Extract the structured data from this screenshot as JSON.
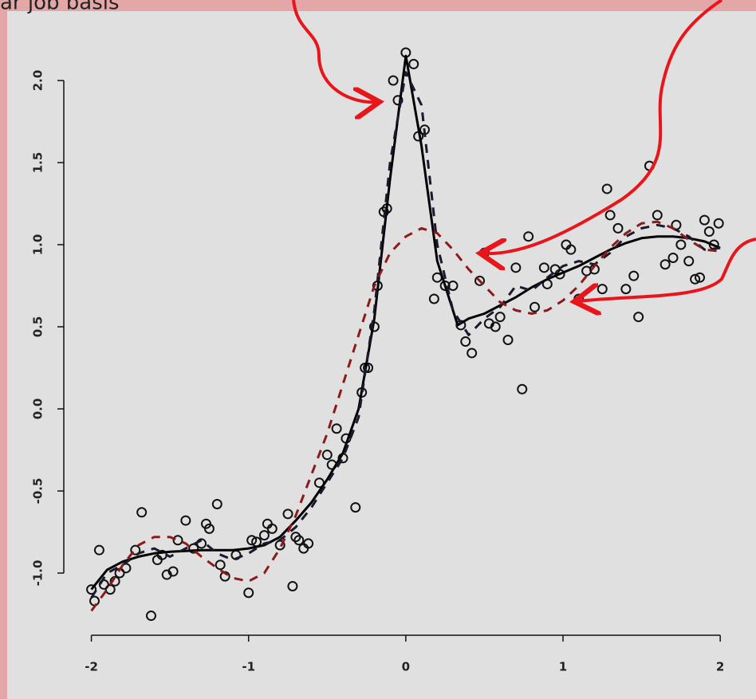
{
  "chart_data": {
    "type": "scatter",
    "caption": "ar job basis",
    "xlim": [
      -2.15,
      2.05
    ],
    "ylim": [
      -1.25,
      2.25
    ],
    "xticks": [
      -2,
      -1,
      0,
      1,
      2
    ],
    "yticks": [
      {
        "value": -1,
        "label": "-1.0"
      },
      -0.5,
      {
        "value": 0,
        "label": "0.0"
      },
      0.5,
      {
        "value": 1,
        "label": "1.0"
      },
      1.5,
      {
        "value": 2,
        "label": "2.0"
      }
    ],
    "series": [
      {
        "kind": "points",
        "color": "#111111",
        "x": [
          -2.0,
          -1.98,
          -1.95,
          -1.92,
          -1.88,
          -1.85,
          -1.82,
          -1.78,
          -1.72,
          -1.68,
          -1.62,
          -1.58,
          -1.55,
          -1.52,
          -1.48,
          -1.45,
          -1.4,
          -1.35,
          -1.3,
          -1.27,
          -1.25,
          -1.2,
          -1.18,
          -1.15,
          -1.08,
          -1.0,
          -0.98,
          -0.95,
          -0.9,
          -0.88,
          -0.85,
          -0.8,
          -0.75,
          -0.72,
          -0.7,
          -0.68,
          -0.65,
          -0.62,
          -0.55,
          -0.5,
          -0.47,
          -0.44,
          -0.4,
          -0.38,
          -0.32,
          -0.28,
          -0.26,
          -0.24,
          -0.2,
          -0.18,
          -0.14,
          -0.12,
          -0.08,
          -0.05,
          0.0,
          0.05,
          0.08,
          0.12,
          0.18,
          0.2,
          0.25,
          0.3,
          0.35,
          0.38,
          0.42,
          0.47,
          0.5,
          0.53,
          0.57,
          0.6,
          0.65,
          0.7,
          0.74,
          0.78,
          0.82,
          0.88,
          0.9,
          0.95,
          0.98,
          1.02,
          1.05,
          1.1,
          1.15,
          1.2,
          1.25,
          1.28,
          1.3,
          1.35,
          1.4,
          1.45,
          1.48,
          1.55,
          1.6,
          1.65,
          1.7,
          1.72,
          1.75,
          1.8,
          1.84,
          1.87,
          1.9,
          1.93,
          1.96,
          1.99
        ],
        "values": [
          -1.1,
          -1.17,
          -0.86,
          -1.07,
          -1.1,
          -1.05,
          -1.0,
          -0.97,
          -0.86,
          -0.63,
          -1.26,
          -0.92,
          -0.89,
          -1.01,
          -0.99,
          -0.8,
          -0.68,
          -0.85,
          -0.82,
          -0.7,
          -0.73,
          -0.58,
          -0.95,
          -1.02,
          -0.89,
          -1.12,
          -0.8,
          -0.81,
          -0.77,
          -0.7,
          -0.73,
          -0.83,
          -0.64,
          -1.08,
          -0.78,
          -0.8,
          -0.85,
          -0.82,
          -0.45,
          -0.28,
          -0.34,
          -0.12,
          -0.3,
          -0.18,
          -0.6,
          0.1,
          0.25,
          0.25,
          0.5,
          0.75,
          1.2,
          1.22,
          2.0,
          1.88,
          2.17,
          2.1,
          1.66,
          1.7,
          0.67,
          0.8,
          0.75,
          0.75,
          0.51,
          0.41,
          0.34,
          0.78,
          0.95,
          0.52,
          0.5,
          0.56,
          0.42,
          0.86,
          0.12,
          1.05,
          0.62,
          0.86,
          0.76,
          0.85,
          0.82,
          1.0,
          0.97,
          0.67,
          0.84,
          0.85,
          0.73,
          1.34,
          1.18,
          1.1,
          0.73,
          0.81,
          0.56,
          1.48,
          1.18,
          0.88,
          0.92,
          1.12,
          1.0,
          0.9,
          0.79,
          0.8,
          1.15,
          1.08,
          1.0,
          1.13
        ]
      },
      {
        "kind": "solid",
        "color": "#000000",
        "x": [
          -2,
          -1.9,
          -1.8,
          -1.7,
          -1.6,
          -1.5,
          -1.4,
          -1.3,
          -1.2,
          -1.1,
          -1.0,
          -0.9,
          -0.8,
          -0.7,
          -0.6,
          -0.5,
          -0.4,
          -0.3,
          -0.2,
          -0.1,
          0,
          0.1,
          0.2,
          0.33,
          0.4,
          0.5,
          0.6,
          0.7,
          0.8,
          0.9,
          1.0,
          1.1,
          1.2,
          1.3,
          1.4,
          1.5,
          1.6,
          1.7,
          1.8,
          1.9,
          2.0
        ],
        "values": [
          -1.1,
          -0.98,
          -0.93,
          -0.9,
          -0.88,
          -0.87,
          -0.865,
          -0.86,
          -0.86,
          -0.86,
          -0.85,
          -0.83,
          -0.78,
          -0.68,
          -0.57,
          -0.43,
          -0.27,
          0.0,
          0.55,
          1.4,
          2.15,
          1.6,
          0.9,
          0.51,
          0.55,
          0.58,
          0.63,
          0.68,
          0.74,
          0.79,
          0.83,
          0.87,
          0.92,
          0.97,
          1.01,
          1.04,
          1.05,
          1.05,
          1.04,
          1.02,
          0.98
        ]
      },
      {
        "kind": "dashed",
        "color": "#1a1a2e",
        "x": [
          -2,
          -1.9,
          -1.8,
          -1.7,
          -1.6,
          -1.5,
          -1.4,
          -1.3,
          -1.2,
          -1.1,
          -1.0,
          -0.9,
          -0.8,
          -0.7,
          -0.6,
          -0.5,
          -0.4,
          -0.3,
          -0.2,
          -0.1,
          0,
          0.1,
          0.2,
          0.3,
          0.4,
          0.5,
          0.6,
          0.7,
          0.8,
          0.9,
          1.0,
          1.1,
          1.2,
          1.3,
          1.4,
          1.5,
          1.6,
          1.7,
          1.8,
          1.9,
          2.0
        ],
        "values": [
          -1.15,
          -1.0,
          -0.95,
          -0.88,
          -0.85,
          -0.9,
          -0.85,
          -0.8,
          -0.88,
          -0.92,
          -0.88,
          -0.82,
          -0.8,
          -0.72,
          -0.6,
          -0.45,
          -0.3,
          -0.05,
          0.6,
          1.5,
          2.05,
          1.85,
          1.0,
          0.6,
          0.45,
          0.55,
          0.62,
          0.75,
          0.72,
          0.8,
          0.87,
          0.9,
          0.88,
          0.95,
          1.05,
          1.1,
          1.12,
          1.1,
          1.05,
          0.97,
          0.98
        ]
      },
      {
        "kind": "dashed",
        "color": "#8b1a1a",
        "x": [
          -2,
          -1.9,
          -1.8,
          -1.7,
          -1.6,
          -1.5,
          -1.4,
          -1.3,
          -1.2,
          -1.1,
          -1.0,
          -0.9,
          -0.8,
          -0.7,
          -0.6,
          -0.5,
          -0.4,
          -0.3,
          -0.2,
          -0.1,
          0,
          0.1,
          0.2,
          0.3,
          0.4,
          0.5,
          0.6,
          0.7,
          0.8,
          0.9,
          1.0,
          1.1,
          1.2,
          1.3,
          1.4,
          1.5,
          1.6,
          1.7,
          1.8,
          1.9,
          2.0
        ],
        "values": [
          -1.23,
          -1.1,
          -0.95,
          -0.83,
          -0.78,
          -0.78,
          -0.82,
          -0.9,
          -0.97,
          -1.03,
          -1.05,
          -1.0,
          -0.85,
          -0.65,
          -0.4,
          -0.15,
          0.15,
          0.45,
          0.75,
          0.95,
          1.05,
          1.1,
          1.07,
          0.97,
          0.85,
          0.75,
          0.65,
          0.6,
          0.58,
          0.6,
          0.66,
          0.75,
          0.87,
          0.98,
          1.07,
          1.13,
          1.14,
          1.1,
          1.03,
          0.97,
          0.96
        ]
      }
    ]
  }
}
